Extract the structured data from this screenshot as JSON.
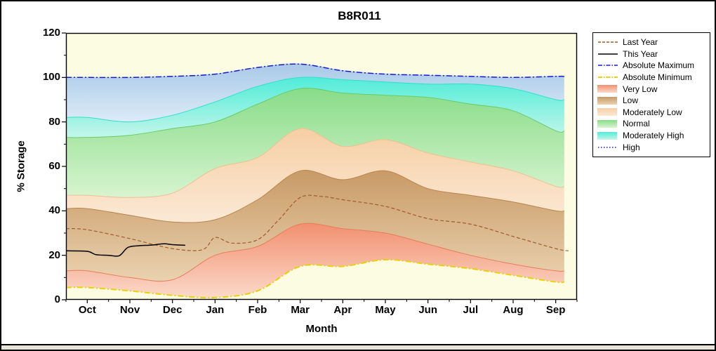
{
  "chart_data": {
    "type": "area",
    "title": "B8R011",
    "xlabel": "Month",
    "ylabel": "% Storage",
    "ylim": [
      0,
      120
    ],
    "yticks": [
      0,
      20,
      40,
      60,
      80,
      100,
      120
    ],
    "months": [
      "Oct",
      "Nov",
      "Dec",
      "Jan",
      "Feb",
      "Mar",
      "Apr",
      "May",
      "Jun",
      "Jul",
      "Aug",
      "Sep"
    ],
    "plot_bg": "#fcfce2",
    "series": {
      "absolute_maximum": [
        100,
        100,
        100.5,
        101.5,
        104.5,
        106,
        103,
        101.5,
        101,
        100.5,
        100,
        100.5
      ],
      "moderately_high_top": [
        82,
        80,
        83,
        89,
        96,
        100,
        99,
        98,
        97,
        97,
        95,
        90
      ],
      "normal_top": [
        73,
        74,
        77,
        80,
        88,
        95,
        93,
        92,
        91,
        88,
        85,
        76
      ],
      "moderately_low_top": [
        47,
        46,
        48,
        59,
        64,
        77,
        69,
        72,
        66,
        62,
        58,
        51
      ],
      "low_top": [
        41,
        38,
        35,
        36,
        45,
        58,
        54,
        58,
        50,
        47,
        44,
        40
      ],
      "very_low_top": [
        13,
        10,
        9,
        20,
        24,
        34,
        32,
        30,
        25,
        20,
        16,
        13
      ],
      "absolute_minimum": [
        5.5,
        4,
        2,
        1,
        4,
        15,
        15,
        18,
        16,
        14,
        11,
        8
      ],
      "last_year": {
        "x": [
          -0.5,
          0,
          1,
          2,
          2.7,
          3,
          3.4,
          4,
          4.5,
          5,
          5.5,
          6,
          7,
          8,
          9,
          10,
          11,
          11.3
        ],
        "v": [
          32,
          31.5,
          27.5,
          23,
          22.5,
          28,
          25.5,
          27,
          36,
          46,
          46.5,
          45,
          42,
          36.5,
          34,
          28.5,
          23,
          22
        ]
      },
      "this_year": {
        "x": [
          -0.5,
          0,
          0.2,
          0.5,
          0.75,
          0.95,
          1.2,
          1.5,
          1.8,
          2.0,
          2.3
        ],
        "v": [
          22,
          21.8,
          20.3,
          20,
          19.8,
          23.5,
          24.3,
          24.6,
          25.2,
          24.8,
          24.5
        ]
      }
    },
    "bands": [
      {
        "label": "Very Low",
        "lower": "absolute_minimum",
        "upper": "very_low_top",
        "color_top": "#f29070",
        "color_bottom": "#fbd9c9",
        "edge": "#e87c58"
      },
      {
        "label": "Low",
        "lower": "very_low_top",
        "upper": "low_top",
        "color_top": "#c89a66",
        "color_bottom": "#ead2b0",
        "edge": "#b8854e"
      },
      {
        "label": "Moderately Low",
        "lower": "low_top",
        "upper": "moderately_low_top",
        "color_top": "#f6cfa4",
        "color_bottom": "#fbe9d6",
        "edge": "#eec090"
      },
      {
        "label": "Normal",
        "lower": "moderately_low_top",
        "upper": "normal_top",
        "color_top": "#88dc88",
        "color_bottom": "#d8f4d0",
        "edge": "#66cc66"
      },
      {
        "label": "Moderately High",
        "lower": "normal_top",
        "upper": "moderately_high_top",
        "color_top": "#50ecd8",
        "color_bottom": "#c4f6ea",
        "edge": "#2ee0ca"
      },
      {
        "label": "High",
        "lower": "moderately_high_top",
        "upper": "absolute_maximum",
        "color_top": "#a9c9e9",
        "color_bottom": "#dcebf7",
        "edge": "#9bbfe2"
      }
    ],
    "lines": [
      {
        "label": "Absolute Maximum",
        "key": "absolute_maximum",
        "color": "#1a1acd",
        "dash": "8 3 2 3",
        "width": 1.5
      },
      {
        "label": "Absolute Minimum",
        "key": "absolute_minimum",
        "color": "#e8d200",
        "dash": "8 3 2 3",
        "width": 2
      },
      {
        "label": "Last Year",
        "key": "last_year",
        "color": "#a05a2a",
        "dash": "5 3",
        "width": 1.2
      },
      {
        "label": "This Year",
        "key": "this_year",
        "color": "#000000",
        "dash": "",
        "width": 1.5
      }
    ],
    "legend": [
      {
        "label": "Last Year",
        "type": "line",
        "color": "#a05a2a",
        "dash": "4 2"
      },
      {
        "label": "This Year",
        "type": "line",
        "color": "#000000",
        "dash": ""
      },
      {
        "label": "Absolute Maximum",
        "type": "line",
        "color": "#1a1acd",
        "dash": "6 2 1.5 2"
      },
      {
        "label": "Absolute Minimum",
        "type": "line",
        "color": "#e8d200",
        "dash": "6 2 1.5 2"
      },
      {
        "label": "Very Low",
        "type": "patch",
        "color_top": "#f29070",
        "color_bottom": "#fbd9c9"
      },
      {
        "label": "Low",
        "type": "patch",
        "color_top": "#c89a66",
        "color_bottom": "#ead2b0"
      },
      {
        "label": "Moderately Low",
        "type": "patch",
        "color_top": "#f6cfa4",
        "color_bottom": "#fbe9d6"
      },
      {
        "label": "Normal",
        "type": "patch",
        "color_top": "#88dc88",
        "color_bottom": "#d8f4d0"
      },
      {
        "label": "Moderately High",
        "type": "patch",
        "color_top": "#50ecd8",
        "color_bottom": "#c4f6ea"
      },
      {
        "label": "High",
        "type": "line",
        "color": "#1a1acd",
        "dash": "1.5 2.5"
      }
    ]
  }
}
